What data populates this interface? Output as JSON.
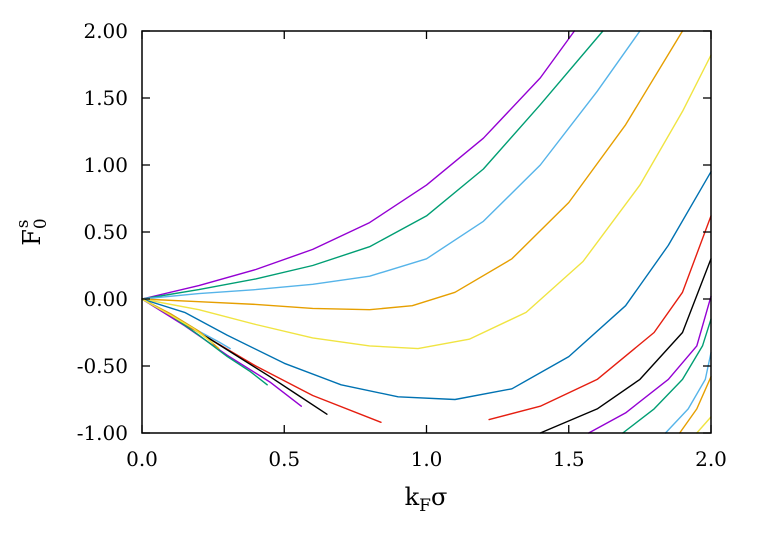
{
  "chart_data": {
    "type": "line",
    "xlabel": {
      "main": "k",
      "sub": "F",
      "tail": "σ"
    },
    "ylabel": {
      "main": "F",
      "sub": "0",
      "sup": "s"
    },
    "xlim": [
      0.0,
      2.0
    ],
    "ylim": [
      -1.0,
      2.0
    ],
    "xticks": [
      "0.0",
      "0.5",
      "1.0",
      "1.5",
      "2.0"
    ],
    "yticks": [
      "-1.00",
      "-0.50",
      "0.00",
      "0.50",
      "1.00",
      "1.50",
      "2.00"
    ],
    "grid": false,
    "legend": "none",
    "series": [
      {
        "color": "#9400d3",
        "points": [
          [
            0,
            0
          ],
          [
            0.2,
            0.1
          ],
          [
            0.4,
            0.22
          ],
          [
            0.6,
            0.37
          ],
          [
            0.8,
            0.57
          ],
          [
            1.0,
            0.85
          ],
          [
            1.2,
            1.2
          ],
          [
            1.4,
            1.65
          ],
          [
            1.52,
            2.0
          ]
        ]
      },
      {
        "color": "#009e73",
        "points": [
          [
            0,
            0
          ],
          [
            0.2,
            0.07
          ],
          [
            0.4,
            0.15
          ],
          [
            0.6,
            0.25
          ],
          [
            0.8,
            0.39
          ],
          [
            1.0,
            0.62
          ],
          [
            1.2,
            0.97
          ],
          [
            1.4,
            1.45
          ],
          [
            1.62,
            2.0
          ]
        ]
      },
      {
        "color": "#56b4e9",
        "points": [
          [
            0,
            0
          ],
          [
            0.2,
            0.04
          ],
          [
            0.4,
            0.07
          ],
          [
            0.6,
            0.11
          ],
          [
            0.8,
            0.17
          ],
          [
            1.0,
            0.3
          ],
          [
            1.2,
            0.58
          ],
          [
            1.4,
            1.0
          ],
          [
            1.6,
            1.55
          ],
          [
            1.75,
            2.0
          ]
        ]
      },
      {
        "color": "#e69f00",
        "points": [
          [
            0,
            0
          ],
          [
            0.2,
            -0.02
          ],
          [
            0.4,
            -0.04
          ],
          [
            0.6,
            -0.07
          ],
          [
            0.8,
            -0.08
          ],
          [
            0.95,
            -0.05
          ],
          [
            1.1,
            0.05
          ],
          [
            1.3,
            0.3
          ],
          [
            1.5,
            0.72
          ],
          [
            1.7,
            1.3
          ],
          [
            1.9,
            2.0
          ]
        ]
      },
      {
        "color": "#f0e442",
        "points": [
          [
            0,
            0
          ],
          [
            0.2,
            -0.08
          ],
          [
            0.4,
            -0.19
          ],
          [
            0.6,
            -0.29
          ],
          [
            0.8,
            -0.35
          ],
          [
            0.97,
            -0.37
          ],
          [
            1.15,
            -0.3
          ],
          [
            1.35,
            -0.1
          ],
          [
            1.55,
            0.28
          ],
          [
            1.75,
            0.85
          ],
          [
            1.9,
            1.4
          ],
          [
            2.0,
            1.82
          ]
        ]
      },
      {
        "color": "#0072b2",
        "points": [
          [
            0,
            0
          ],
          [
            0.15,
            -0.1
          ],
          [
            0.3,
            -0.27
          ],
          [
            0.5,
            -0.48
          ],
          [
            0.7,
            -0.64
          ],
          [
            0.9,
            -0.73
          ],
          [
            1.1,
            -0.75
          ],
          [
            1.3,
            -0.67
          ],
          [
            1.5,
            -0.43
          ],
          [
            1.7,
            -0.05
          ],
          [
            1.85,
            0.4
          ],
          [
            2.0,
            0.95
          ]
        ]
      },
      {
        "color": "#e51e10",
        "points": [
          [
            0,
            0
          ],
          [
            0.2,
            -0.25
          ],
          [
            0.4,
            -0.5
          ],
          [
            0.6,
            -0.72
          ],
          [
            0.84,
            -0.92
          ]
        ]
      },
      {
        "color": "#e51e10",
        "points": [
          [
            1.22,
            -0.9
          ],
          [
            1.4,
            -0.8
          ],
          [
            1.6,
            -0.6
          ],
          [
            1.8,
            -0.25
          ],
          [
            1.9,
            0.05
          ],
          [
            2.0,
            0.62
          ]
        ]
      },
      {
        "color": "#000000",
        "points": [
          [
            0,
            0
          ],
          [
            0.15,
            -0.18
          ],
          [
            0.3,
            -0.38
          ],
          [
            0.45,
            -0.58
          ],
          [
            0.55,
            -0.72
          ],
          [
            0.65,
            -0.86
          ]
        ]
      },
      {
        "color": "#000000",
        "points": [
          [
            1.4,
            -1.0
          ],
          [
            1.6,
            -0.82
          ],
          [
            1.75,
            -0.6
          ],
          [
            1.9,
            -0.25
          ],
          [
            2.0,
            0.3
          ]
        ]
      },
      {
        "color": "#9400d3",
        "points": [
          [
            0,
            0
          ],
          [
            0.15,
            -0.2
          ],
          [
            0.3,
            -0.42
          ],
          [
            0.45,
            -0.62
          ],
          [
            0.56,
            -0.8
          ]
        ]
      },
      {
        "color": "#9400d3",
        "points": [
          [
            1.57,
            -1.0
          ],
          [
            1.7,
            -0.85
          ],
          [
            1.85,
            -0.6
          ],
          [
            1.95,
            -0.35
          ],
          [
            2.0,
            0.02
          ]
        ]
      },
      {
        "color": "#009e73",
        "points": [
          [
            0,
            0
          ],
          [
            0.1,
            -0.12
          ],
          [
            0.2,
            -0.27
          ],
          [
            0.3,
            -0.43
          ],
          [
            0.38,
            -0.54
          ],
          [
            0.44,
            -0.64
          ]
        ]
      },
      {
        "color": "#009e73",
        "points": [
          [
            1.69,
            -1.0
          ],
          [
            1.8,
            -0.82
          ],
          [
            1.9,
            -0.6
          ],
          [
            1.97,
            -0.35
          ],
          [
            2.0,
            -0.15
          ]
        ]
      },
      {
        "color": "#56b4e9",
        "points": [
          [
            0,
            0
          ],
          [
            0.1,
            -0.11
          ],
          [
            0.2,
            -0.24
          ],
          [
            0.27,
            -0.32
          ],
          [
            0.31,
            -0.37
          ]
        ]
      },
      {
        "color": "#56b4e9",
        "points": [
          [
            1.84,
            -1.0
          ],
          [
            1.92,
            -0.82
          ],
          [
            1.98,
            -0.6
          ],
          [
            2.0,
            -0.4
          ]
        ]
      },
      {
        "color": "#e69f00",
        "points": [
          [
            0,
            0
          ],
          [
            0.1,
            -0.11
          ],
          [
            0.2,
            -0.24
          ],
          [
            0.27,
            -0.37
          ]
        ]
      },
      {
        "color": "#e69f00",
        "points": [
          [
            1.89,
            -1.0
          ],
          [
            1.95,
            -0.82
          ],
          [
            2.0,
            -0.58
          ]
        ]
      },
      {
        "color": "#f0e442",
        "points": [
          [
            0,
            0
          ],
          [
            0.1,
            -0.12
          ],
          [
            0.18,
            -0.22
          ],
          [
            0.25,
            -0.33
          ]
        ]
      },
      {
        "color": "#f0e442",
        "points": [
          [
            1.95,
            -1.0
          ],
          [
            2.0,
            -0.88
          ]
        ]
      }
    ]
  }
}
